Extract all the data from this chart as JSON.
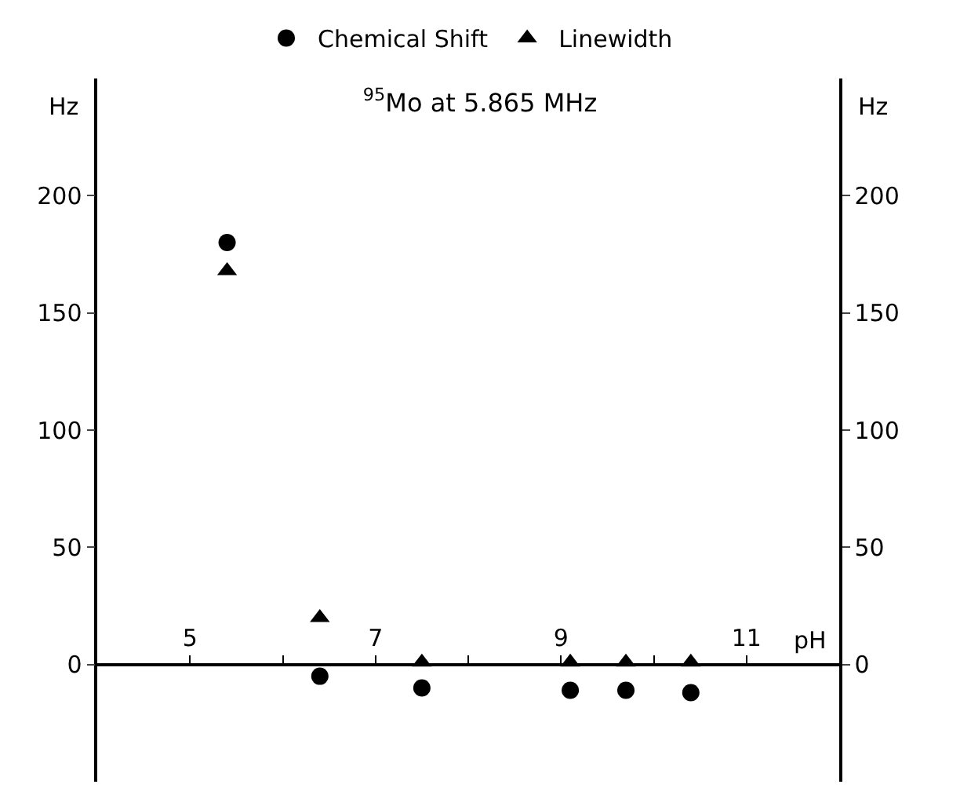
{
  "chart_data": {
    "type": "scatter",
    "title": "$^{95}$Mo at 5.865 MHz",
    "xlabel": "pH",
    "ylabel": "Hz",
    "y2label": "Hz",
    "series": [
      {
        "name": "Chemical Shift",
        "color": "#000000",
        "marker": "circle",
        "x": [
          5.4,
          6.4,
          7.5,
          9.1,
          9.7,
          10.4
        ],
        "values": [
          180,
          -5,
          -10,
          -11,
          -11,
          -12
        ]
      },
      {
        "name": "Linewidth",
        "color": "#000000",
        "marker": "triangle",
        "axis": "y2",
        "x": [
          5.4,
          6.4,
          7.5,
          9.1,
          9.7,
          10.4
        ],
        "values": [
          168,
          20,
          1,
          1,
          1,
          1
        ]
      }
    ],
    "xlim": [
      4,
      12
    ],
    "xticks": [
      5,
      {
        "value": 6,
        "label": null
      },
      7,
      {
        "value": 8,
        "label": null
      },
      9,
      {
        "value": 10,
        "label": null
      },
      11
    ],
    "ylim": [
      -50,
      250
    ],
    "yticks": [
      0,
      50,
      100,
      150,
      200
    ],
    "y2lim": [
      -50,
      250
    ],
    "y2ticks": [
      0,
      50,
      100,
      150,
      200
    ],
    "legend": "top"
  }
}
